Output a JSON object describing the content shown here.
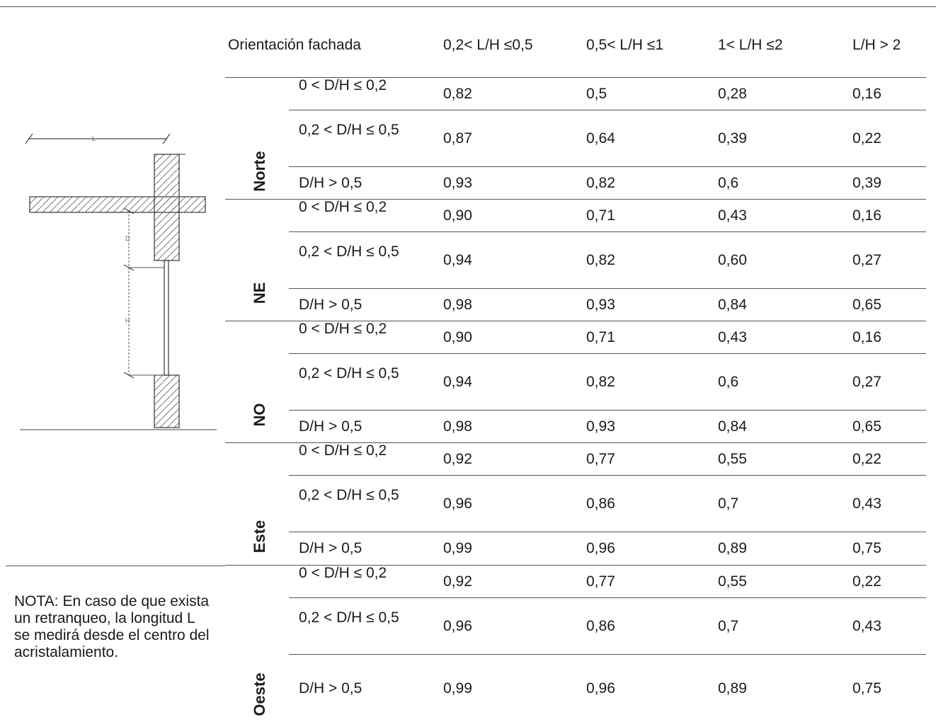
{
  "header": {
    "orientation_label": "Orientación fachada",
    "columns": [
      "0,2< L/H ≤0,5",
      "0,5< L/H ≤1",
      "1< L/H ≤2",
      "L/H > 2"
    ]
  },
  "groups": [
    {
      "name": "Norte",
      "rows": [
        {
          "label": "0 < D/H ≤ 0,2",
          "values": [
            "0,82",
            "0,5",
            "0,28",
            "0,16"
          ]
        },
        {
          "label": "0,2 < D/H ≤ 0,5",
          "values": [
            "0,87",
            "0,64",
            "0,39",
            "0,22"
          ]
        },
        {
          "label": "D/H > 0,5",
          "values": [
            "0,93",
            "0,82",
            "0,6",
            "0,39"
          ]
        }
      ]
    },
    {
      "name": "NE",
      "rows": [
        {
          "label": "0 < D/H ≤ 0,2",
          "values": [
            "0,90",
            "0,71",
            "0,43",
            "0,16"
          ]
        },
        {
          "label": "0,2 < D/H ≤ 0,5",
          "values": [
            "0,94",
            "0,82",
            "0,60",
            "0,27"
          ]
        },
        {
          "label": "D/H > 0,5",
          "values": [
            "0,98",
            "0,93",
            "0,84",
            "0,65"
          ]
        }
      ]
    },
    {
      "name": "NO",
      "rows": [
        {
          "label": "0 < D/H ≤ 0,2",
          "values": [
            "0,90",
            "0,71",
            "0,43",
            "0,16"
          ]
        },
        {
          "label": "0,2 < D/H ≤ 0,5",
          "values": [
            "0,94",
            "0,82",
            "0,6",
            "0,27"
          ]
        },
        {
          "label": "D/H > 0,5",
          "values": [
            "0,98",
            "0,93",
            "0,84",
            "0,65"
          ]
        }
      ]
    },
    {
      "name": "Este",
      "rows": [
        {
          "label": "0 < D/H ≤ 0,2",
          "values": [
            "0,92",
            "0,77",
            "0,55",
            "0,22"
          ]
        },
        {
          "label": "0,2 < D/H ≤ 0,5",
          "values": [
            "0,96",
            "0,86",
            "0,7",
            "0,43"
          ]
        },
        {
          "label": "D/H > 0,5",
          "values": [
            "0,99",
            "0,96",
            "0,89",
            "0,75"
          ]
        }
      ]
    },
    {
      "name": "Oeste",
      "rows": [
        {
          "label": "0 < D/H ≤ 0,2",
          "values": [
            "0,92",
            "0,77",
            "0,55",
            "0,22"
          ]
        },
        {
          "label": "0,2 < D/H ≤ 0,5",
          "values": [
            "0,96",
            "0,86",
            "0,7",
            "0,43"
          ]
        },
        {
          "label": "D/H > 0,5",
          "values": [
            "0,99",
            "0,96",
            "0,89",
            "0,75"
          ]
        }
      ]
    }
  ],
  "diagram": {
    "label_l": "L",
    "label_d": "D",
    "label_h": "H"
  },
  "note": "NOTA: En caso de que exista un retranqueo, la longitud L se medirá desde el centro del acristalamiento."
}
